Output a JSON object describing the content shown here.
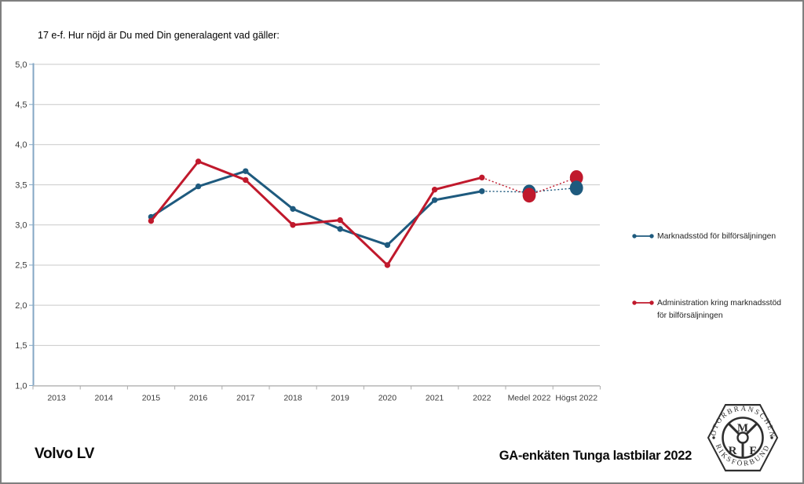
{
  "chart_data": {
    "type": "line",
    "title": "17 e-f. Hur nöjd är Du med Din generalagent vad gäller:",
    "categories": [
      "2013",
      "2014",
      "2015",
      "2016",
      "2017",
      "2018",
      "2019",
      "2020",
      "2021",
      "2022",
      "Medel 2022",
      "Högst 2022"
    ],
    "ylim": [
      1.0,
      5.0
    ],
    "ytick_step": 0.5,
    "ytick_labels": [
      "5,0",
      "4,5",
      "4,0",
      "3,5",
      "3,0",
      "2,5",
      "2,0",
      "1,5",
      "1,0"
    ],
    "grid": true,
    "legend_position": "right",
    "summary_categories": [
      "Medel 2022",
      "Högst 2022"
    ],
    "series": [
      {
        "name": "Marknadsstöd för bilförsäljningen",
        "color": "#1E5A7E",
        "values": [
          null,
          null,
          3.1,
          3.48,
          3.67,
          3.2,
          2.95,
          2.75,
          3.31,
          3.42,
          3.41,
          3.46
        ]
      },
      {
        "name": "Administration kring marknadsstöd för bilförsäljningen",
        "color": "#C0192C",
        "values": [
          null,
          null,
          3.05,
          3.79,
          3.56,
          3.0,
          3.06,
          2.5,
          3.44,
          3.59,
          3.37,
          3.59
        ]
      }
    ],
    "colors": {
      "gridline": "#c9c9c9",
      "y_axis": "#84a7c4",
      "x_axis": "#bfbfbf",
      "tick_label": "#3b3b3b"
    }
  },
  "footer": {
    "left": "Volvo LV",
    "right": "GA-enkäten Tunga lastbilar 2022"
  },
  "logo": {
    "top": "MOTORBRANSCHENS",
    "bottom": "RIKSFÖRBUND",
    "separator": "·",
    "letters": {
      "m": "M",
      "r": "R",
      "f": "F"
    }
  }
}
